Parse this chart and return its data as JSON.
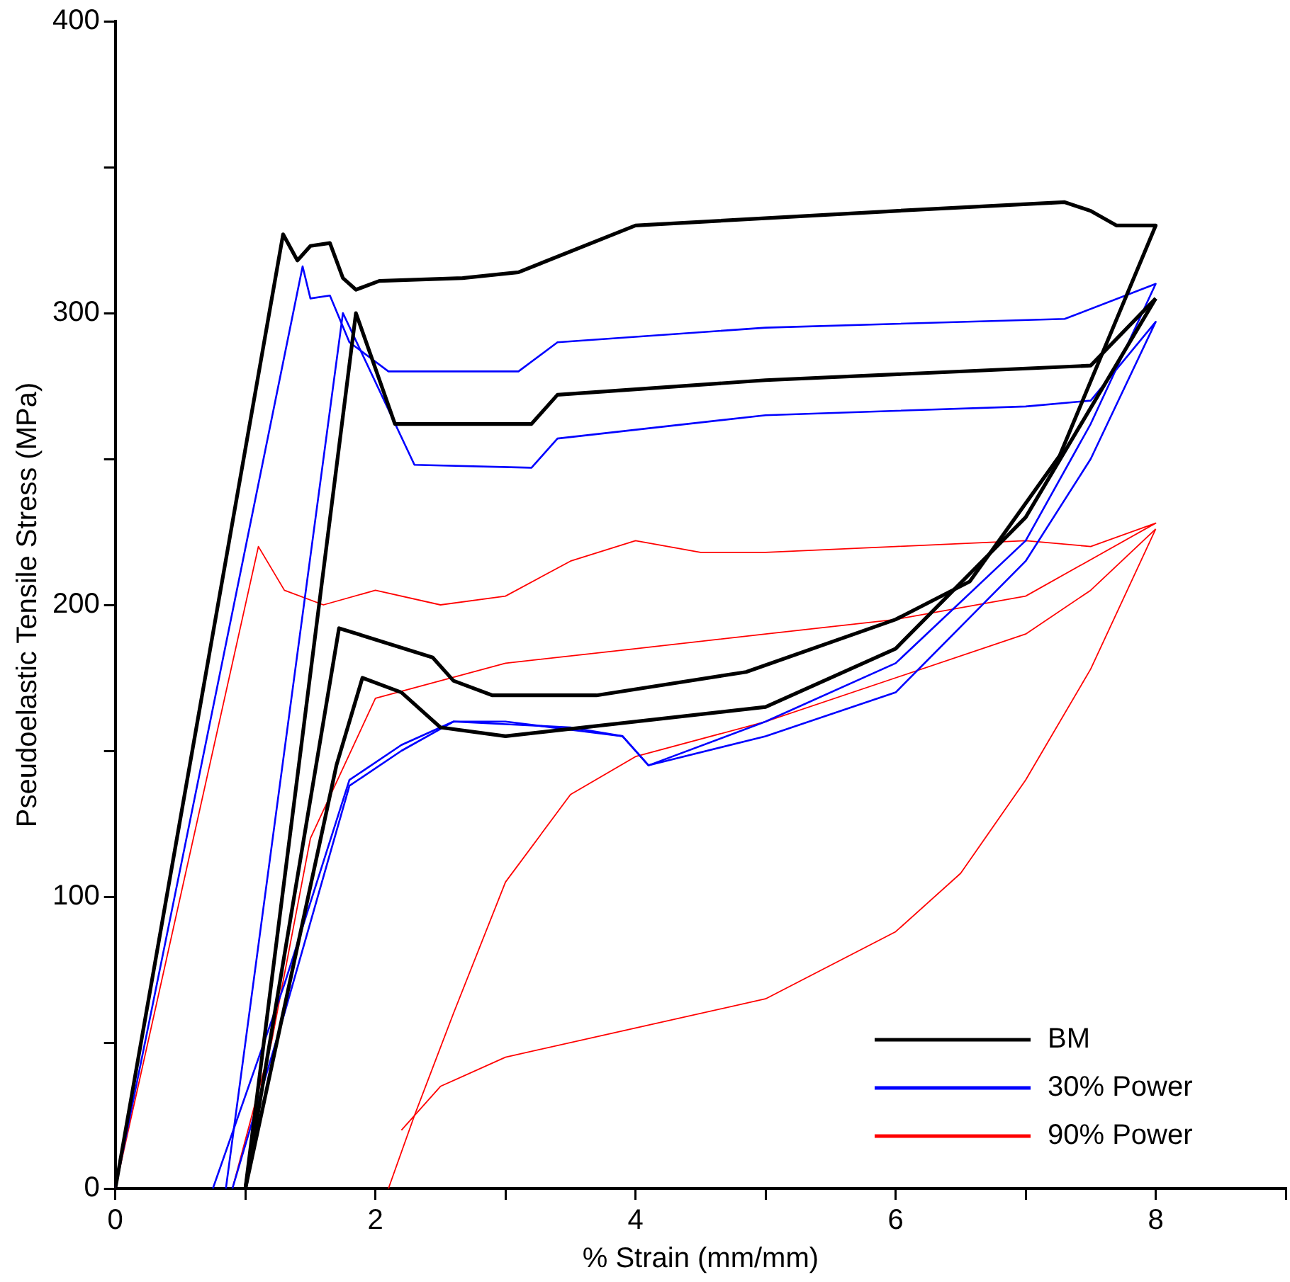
{
  "chart_data": {
    "type": "line",
    "xlabel": "% Strain (mm/mm)",
    "ylabel": "Pseudoelastic Tensile Stress (MPa)",
    "xlim": [
      0,
      9
    ],
    "xticks": [
      0,
      {
        "value": 1,
        "label": null
      },
      2,
      {
        "value": 3,
        "label": null
      },
      4,
      {
        "value": 5,
        "label": null
      },
      6,
      {
        "value": 7,
        "label": null
      },
      8,
      {
        "value": 9,
        "label": null
      }
    ],
    "ylim": [
      0,
      400
    ],
    "yticks": [
      0,
      {
        "value": 50,
        "label": null
      },
      100,
      {
        "value": 150,
        "label": null
      },
      200,
      {
        "value": 250,
        "label": null
      },
      300,
      {
        "value": 350,
        "label": null
      },
      400
    ],
    "grid": false,
    "legend": "bottom right",
    "marker": "none",
    "line_style": "solid",
    "series": [
      {
        "name": "BM",
        "color": "#000000",
        "x": [
          0,
          1.29,
          1.4,
          1.5,
          1.65,
          1.75,
          1.85,
          2.03,
          2.67,
          3.1,
          4,
          6,
          7.3,
          7.5,
          7.7,
          8,
          7.26,
          6.57,
          6,
          4.85,
          3.7,
          2.9,
          2.6,
          2.44,
          1.72,
          1
        ],
        "values": [
          0,
          327,
          318,
          323,
          324,
          312,
          308,
          311,
          312,
          314,
          330,
          335,
          338,
          335,
          330,
          330,
          251,
          208,
          195,
          177,
          169,
          169,
          174,
          182,
          192,
          0
        ]
      },
      {
        "color": "#000000",
        "x": [
          1,
          1.85,
          2.15,
          3.2,
          3.4,
          5,
          7.5,
          8
        ],
        "values": [
          0,
          300,
          262,
          262,
          272,
          277,
          282,
          305
        ]
      },
      {
        "color": "#000000",
        "x": [
          1,
          1.7,
          1.9,
          2.2,
          2.5,
          3,
          5,
          6,
          7,
          8
        ],
        "values": [
          0,
          145,
          175,
          170,
          158,
          155,
          165,
          185,
          230,
          305
        ]
      },
      {
        "name": "30% Power",
        "color": "#0000ff",
        "x": [
          0,
          1.44,
          1.5,
          1.65,
          1.8,
          2.1,
          3.1,
          3.4,
          5,
          7.3,
          8,
          7.5,
          7,
          6,
          5,
          4.1,
          3.9,
          3,
          2.6,
          2.2,
          1.8,
          1.3,
          0.75
        ],
        "values": [
          0,
          316,
          305,
          306,
          290,
          280,
          280,
          290,
          295,
          298,
          310,
          262,
          222,
          180,
          160,
          145,
          155,
          160,
          160,
          152,
          140,
          70,
          0
        ]
      },
      {
        "color": "#0000ff",
        "x": [
          0.85,
          1.75,
          2.3,
          3.2,
          3.4,
          5,
          7,
          7.5,
          8,
          7.5,
          7,
          6,
          5,
          4.1,
          3.9,
          3.5,
          2.6,
          2.2,
          1.8,
          1.3,
          0.9
        ],
        "values": [
          0,
          300,
          248,
          247,
          257,
          265,
          268,
          270,
          297,
          250,
          215,
          170,
          155,
          145,
          155,
          158,
          160,
          150,
          138,
          60,
          0
        ]
      },
      {
        "name": "90% Power",
        "color": "#ff0000",
        "x": [
          0,
          1.1,
          1.3,
          1.6,
          2,
          2.5,
          3,
          3.5,
          4,
          4.5,
          5,
          6,
          7,
          7.5,
          8,
          7,
          6,
          5,
          4,
          3,
          2,
          1.5,
          1.2,
          0.9
        ],
        "values": [
          0,
          220,
          205,
          200,
          205,
          200,
          203,
          215,
          222,
          218,
          218,
          220,
          222,
          220,
          228,
          203,
          195,
          190,
          185,
          180,
          168,
          120,
          50,
          0
        ]
      },
      {
        "color": "#ff0000",
        "x": [
          2.2,
          2.5,
          3,
          4,
          5,
          6,
          6.5,
          7,
          7.5,
          8
        ],
        "values": [
          20,
          35,
          45,
          55,
          65,
          88,
          108,
          140,
          178,
          226
        ]
      },
      {
        "color": "#ff0000",
        "x": [
          2.1,
          2.3,
          2.6,
          3,
          3.5,
          4,
          5,
          6,
          7,
          7.5,
          8
        ],
        "values": [
          0,
          25,
          60,
          105,
          135,
          148,
          160,
          175,
          190,
          205,
          226
        ]
      }
    ]
  }
}
